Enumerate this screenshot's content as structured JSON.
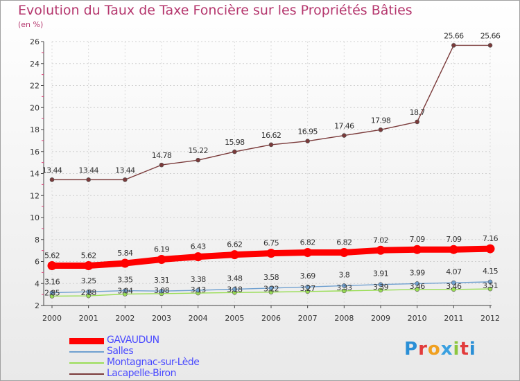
{
  "chart_data": {
    "type": "line",
    "title": "Evolution du Taux de Taxe Foncière sur les Propriétés Bâties",
    "ylabel": "(en %)",
    "xlabel": "",
    "ylim": [
      2,
      26
    ],
    "yticks": [
      2,
      4,
      6,
      8,
      10,
      12,
      14,
      16,
      18,
      20,
      22,
      24,
      26
    ],
    "categories": [
      "2000",
      "2001",
      "2002",
      "2003",
      "2004",
      "2005",
      "2006",
      "2007",
      "2008",
      "2009",
      "2010",
      "2011",
      "2012"
    ],
    "series": [
      {
        "name": "GAVAUDUN",
        "color": "#ff0000",
        "values": [
          5.62,
          5.62,
          5.84,
          6.19,
          6.43,
          6.62,
          6.75,
          6.82,
          6.82,
          7.02,
          7.09,
          7.09,
          7.16
        ],
        "labels": [
          "5.62",
          "5.62",
          "5.84",
          "6.19",
          "6.43",
          "6.62",
          "6.75",
          "6.82",
          "6.82",
          "7.02",
          "7.09",
          "7.09",
          "7.16"
        ]
      },
      {
        "name": "Salles",
        "color": "#6fa0d0",
        "values": [
          3.16,
          3.25,
          3.35,
          3.31,
          3.38,
          3.48,
          3.58,
          3.69,
          3.8,
          3.91,
          3.99,
          4.07,
          4.15
        ],
        "labels": [
          "3.16",
          "3.25",
          "3.35",
          "3.31",
          "3.38",
          "3.48",
          "3.58",
          "3.69",
          "3.8",
          "3.91",
          "3.99",
          "4.07",
          "4.15"
        ]
      },
      {
        "name": "Montagnac-sur-Lède",
        "color": "#99dd55",
        "values": [
          2.85,
          2.88,
          3.04,
          3.08,
          3.13,
          3.18,
          3.22,
          3.27,
          3.33,
          3.39,
          3.46,
          3.46,
          3.51
        ],
        "labels": [
          "2.85",
          "2.88",
          "3.04",
          "3.08",
          "3.13",
          "3.18",
          "3.22",
          "3.27",
          "3.33",
          "3.39",
          "3.46",
          "3.46",
          "3.51"
        ]
      },
      {
        "name": "Lacapelle-Biron",
        "color": "#7a3a3a",
        "values": [
          13.44,
          13.44,
          13.44,
          14.78,
          15.22,
          15.98,
          16.62,
          16.95,
          17.46,
          17.98,
          18.7,
          25.66,
          25.66
        ],
        "labels": [
          "13.44",
          "13.44",
          "13.44",
          "14.78",
          "15.22",
          "15.98",
          "16.62",
          "16.95",
          "17.46",
          "17.98",
          "18.7",
          "25.66",
          "25.66"
        ]
      }
    ],
    "legend_position": "bottom-left"
  },
  "logo": {
    "letters": [
      "P",
      "r",
      "o",
      "x",
      "i",
      "t",
      "i"
    ]
  }
}
